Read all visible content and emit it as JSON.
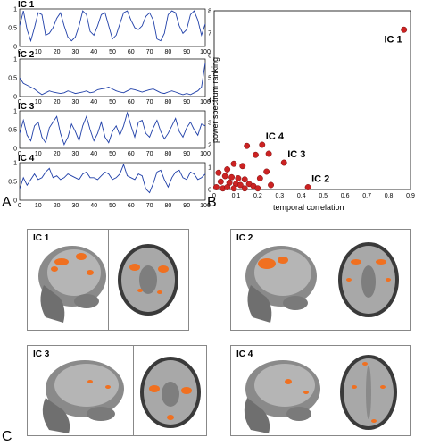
{
  "panel_labels": {
    "a": "A",
    "b": "B",
    "c": "C"
  },
  "timeseries_panels": [
    {
      "label": "IC 1",
      "yticks": [
        "1",
        "0.5",
        "0"
      ],
      "values": [
        0.55,
        0.95,
        0.45,
        0.15,
        0.5,
        0.9,
        0.85,
        0.3,
        0.35,
        0.5,
        0.75,
        0.9,
        0.55,
        0.25,
        0.15,
        0.25,
        0.55,
        0.95,
        0.85,
        0.4,
        0.3,
        0.55,
        0.85,
        0.9,
        0.55,
        0.2,
        0.3,
        0.6,
        0.9,
        0.95,
        0.7,
        0.5,
        0.45,
        0.55,
        0.8,
        0.9,
        0.7,
        0.2,
        0.15,
        0.35,
        0.85,
        0.95,
        0.9,
        0.55,
        0.35,
        0.45,
        0.85,
        0.95,
        0.7,
        0.3,
        0.6
      ]
    },
    {
      "label": "IC 2",
      "yticks": [
        "1",
        "0.5",
        "0"
      ],
      "values": [
        0.5,
        0.35,
        0.3,
        0.25,
        0.2,
        0.12,
        0.05,
        0.1,
        0.15,
        0.12,
        0.1,
        0.08,
        0.1,
        0.15,
        0.12,
        0.08,
        0.1,
        0.12,
        0.15,
        0.1,
        0.12,
        0.18,
        0.2,
        0.22,
        0.25,
        0.2,
        0.15,
        0.12,
        0.1,
        0.15,
        0.2,
        0.18,
        0.15,
        0.12,
        0.15,
        0.18,
        0.2,
        0.15,
        0.1,
        0.08,
        0.12,
        0.15,
        0.12,
        0.08,
        0.05,
        0.08,
        0.05,
        0.1,
        0.15,
        0.25,
        0.9
      ]
    },
    {
      "label": "IC 3",
      "yticks": [
        "1",
        "0.5",
        "0"
      ],
      "values": [
        0.4,
        0.75,
        0.35,
        0.2,
        0.6,
        0.7,
        0.3,
        0.15,
        0.55,
        0.7,
        0.85,
        0.4,
        0.1,
        0.3,
        0.65,
        0.45,
        0.2,
        0.6,
        0.85,
        0.5,
        0.2,
        0.4,
        0.7,
        0.3,
        0.15,
        0.45,
        0.6,
        0.35,
        0.6,
        0.95,
        0.6,
        0.3,
        0.7,
        0.75,
        0.4,
        0.3,
        0.55,
        0.75,
        0.45,
        0.25,
        0.4,
        0.6,
        0.8,
        0.45,
        0.3,
        0.55,
        0.7,
        0.5,
        0.35,
        0.65,
        0.6
      ]
    },
    {
      "label": "IC 4",
      "yticks": [
        "1",
        "0.5",
        "0"
      ],
      "values": [
        0.3,
        0.6,
        0.4,
        0.55,
        0.7,
        0.55,
        0.6,
        0.75,
        0.85,
        0.6,
        0.65,
        0.55,
        0.6,
        0.7,
        0.65,
        0.6,
        0.55,
        0.7,
        0.75,
        0.6,
        0.6,
        0.55,
        0.65,
        0.75,
        0.7,
        0.55,
        0.6,
        0.7,
        0.95,
        0.65,
        0.6,
        0.55,
        0.7,
        0.65,
        0.3,
        0.2,
        0.45,
        0.75,
        0.8,
        0.55,
        0.35,
        0.6,
        0.75,
        0.8,
        0.6,
        0.55,
        0.75,
        0.7,
        0.55,
        0.6,
        0.7
      ]
    }
  ],
  "timeseries_xticks": [
    "0",
    "10",
    "20",
    "30",
    "40",
    "50",
    "60",
    "70",
    "80",
    "90",
    "100"
  ],
  "chart_data": {
    "type": "scatter",
    "xlabel": "temporal correlation",
    "ylabel": "power spectrum ranking",
    "xlim": [
      0,
      0.9
    ],
    "ylim": [
      0,
      8
    ],
    "xticks": [
      "0",
      "0.1",
      "0.2",
      "0.3",
      "0.4",
      "0.5",
      "0.6",
      "0.7",
      "0.8",
      "0.9"
    ],
    "yticks": [
      "0",
      "1",
      "2",
      "3",
      "4",
      "5",
      "6",
      "7",
      "8"
    ],
    "marker_color": "#cc2222",
    "points": [
      {
        "x": 0.87,
        "y": 7.15,
        "label": "IC 1"
      },
      {
        "x": 0.43,
        "y": 0.1,
        "label": "IC 2"
      },
      {
        "x": 0.32,
        "y": 1.2,
        "label": "IC 3"
      },
      {
        "x": 0.22,
        "y": 2.0,
        "label": "IC 4"
      },
      {
        "x": 0.15,
        "y": 1.95,
        "label": ""
      },
      {
        "x": 0.19,
        "y": 1.55,
        "label": ""
      },
      {
        "x": 0.25,
        "y": 1.6,
        "label": ""
      },
      {
        "x": 0.09,
        "y": 1.15,
        "label": ""
      },
      {
        "x": 0.13,
        "y": 1.05,
        "label": ""
      },
      {
        "x": 0.06,
        "y": 0.9,
        "label": ""
      },
      {
        "x": 0.02,
        "y": 0.75,
        "label": ""
      },
      {
        "x": 0.05,
        "y": 0.6,
        "label": ""
      },
      {
        "x": 0.08,
        "y": 0.55,
        "label": ""
      },
      {
        "x": 0.11,
        "y": 0.5,
        "label": ""
      },
      {
        "x": 0.14,
        "y": 0.45,
        "label": ""
      },
      {
        "x": 0.21,
        "y": 0.5,
        "label": ""
      },
      {
        "x": 0.24,
        "y": 0.8,
        "label": ""
      },
      {
        "x": 0.03,
        "y": 0.35,
        "label": ""
      },
      {
        "x": 0.07,
        "y": 0.3,
        "label": ""
      },
      {
        "x": 0.1,
        "y": 0.25,
        "label": ""
      },
      {
        "x": 0.12,
        "y": 0.2,
        "label": ""
      },
      {
        "x": 0.16,
        "y": 0.25,
        "label": ""
      },
      {
        "x": 0.18,
        "y": 0.15,
        "label": ""
      },
      {
        "x": 0.01,
        "y": 0.1,
        "label": ""
      },
      {
        "x": 0.04,
        "y": 0.05,
        "label": ""
      },
      {
        "x": 0.06,
        "y": 0.1,
        "label": ""
      },
      {
        "x": 0.09,
        "y": 0.05,
        "label": ""
      },
      {
        "x": 0.2,
        "y": 0.05,
        "label": ""
      },
      {
        "x": 0.26,
        "y": 0.2,
        "label": ""
      },
      {
        "x": 0.14,
        "y": 0.05,
        "label": ""
      }
    ]
  },
  "brain_panels": [
    {
      "label": "IC 1"
    },
    {
      "label": "IC 2"
    },
    {
      "label": "IC 3"
    },
    {
      "label": "IC 4"
    }
  ],
  "colors": {
    "line": "#1f3fa8",
    "activation": "#f07020",
    "brain_gray": "#9a9a9a"
  }
}
